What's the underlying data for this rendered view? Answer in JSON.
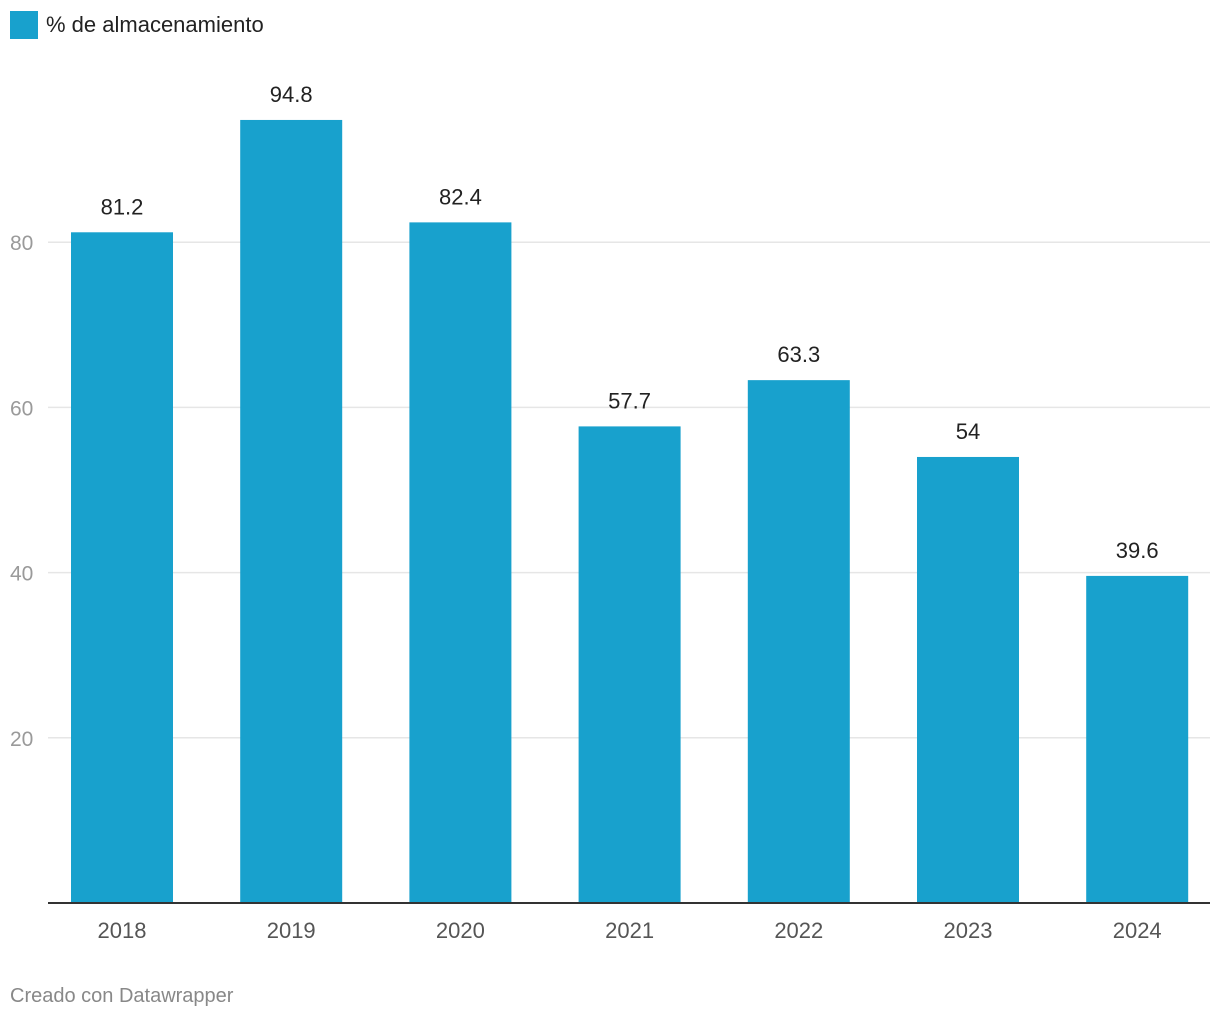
{
  "legend": {
    "label": "% de almacenamiento",
    "color": "#18A1CD"
  },
  "footer": {
    "credit": "Creado con Datawrapper"
  },
  "chart_data": {
    "type": "bar",
    "title": "",
    "xlabel": "",
    "ylabel": "",
    "categories": [
      "2018",
      "2019",
      "2020",
      "2021",
      "2022",
      "2023",
      "2024"
    ],
    "series": [
      {
        "name": "% de almacenamiento",
        "values": [
          81.2,
          94.8,
          82.4,
          57.7,
          63.3,
          54,
          39.6
        ],
        "labels": [
          "81.2",
          "94.8",
          "82.4",
          "57.7",
          "63.3",
          "54",
          "39.6"
        ]
      }
    ],
    "ylim": [
      0,
      100
    ],
    "yticks": [
      20,
      40,
      60,
      80
    ],
    "grid": true,
    "legend_position": "top-left",
    "colors": {
      "bar": "#18A1CD",
      "grid": "#E6E6E6",
      "axis": "#333333",
      "tick_label": "#9A9A9A",
      "x_label": "#555555",
      "value_label": "#222222"
    }
  }
}
